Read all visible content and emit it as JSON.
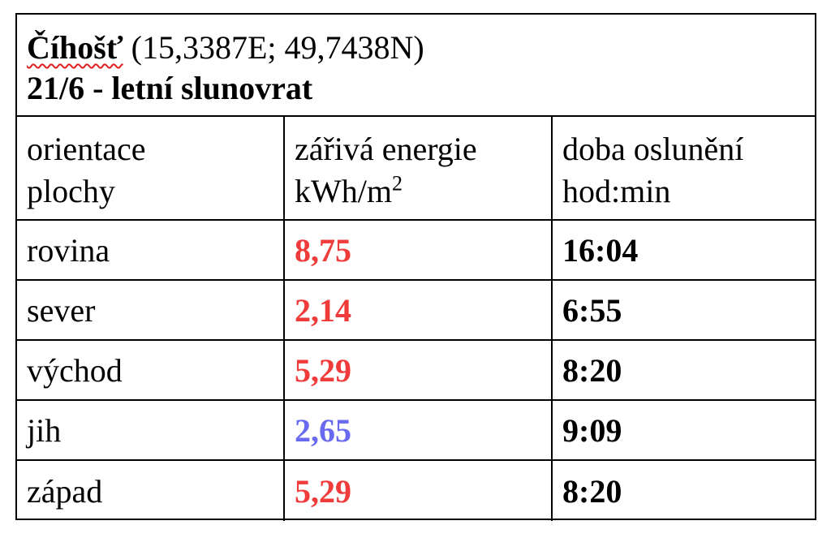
{
  "header": {
    "place": "Číhošť",
    "coords": " (15,3387E; 49,7438N)",
    "subtitle": "21/6 - letní slunovrat"
  },
  "table": {
    "columns": [
      {
        "line1": "orientace",
        "line2": "plochy"
      },
      {
        "line1": "zářivá energie",
        "line2": "kWh/m",
        "superscript": "2"
      },
      {
        "line1": "doba oslunění",
        "line2": "hod:min"
      }
    ],
    "rows": [
      {
        "orientation": "rovina",
        "energy": "8,75",
        "duration": "16:04",
        "energy_color": "#f03b3b"
      },
      {
        "orientation": "sever",
        "energy": "2,14",
        "duration": "6:55",
        "energy_color": "#f03b3b"
      },
      {
        "orientation": "východ",
        "energy": "5,29",
        "duration": "8:20",
        "energy_color": "#f03b3b"
      },
      {
        "orientation": "jih",
        "energy": "2,65",
        "duration": "9:09",
        "energy_color": "#6a6af0"
      },
      {
        "orientation": "západ",
        "energy": "5,29",
        "duration": "8:20",
        "energy_color": "#f03b3b"
      }
    ]
  },
  "colors": {
    "border": "#000000",
    "spellcheck_underline": "#e02020"
  }
}
